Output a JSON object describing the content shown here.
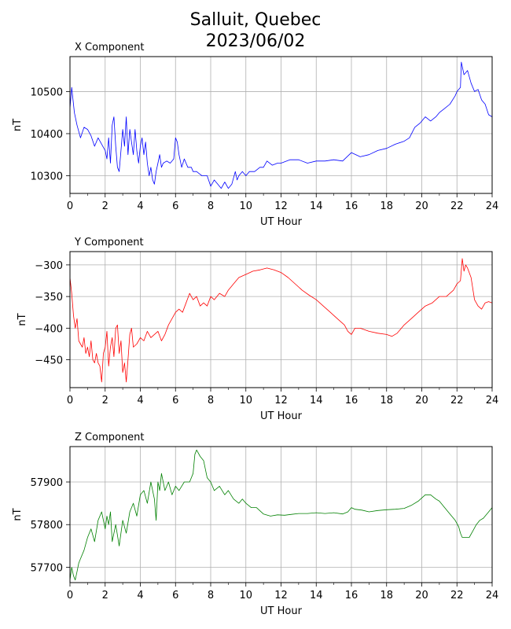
{
  "figure": {
    "title_line1": "Salluit, Quebec",
    "title_line2": "2023/06/02"
  },
  "colors": {
    "x": "#0000ff",
    "y": "#ff0000",
    "z": "#008000",
    "grid": "#b0b0b0"
  },
  "chart_data": [
    {
      "type": "line",
      "title": "X Component",
      "xlabel": "UT Hour",
      "ylabel": "nT",
      "xlim": [
        0,
        24
      ],
      "ylim": [
        10258,
        10583
      ],
      "xticks": [
        "0",
        "2",
        "4",
        "6",
        "8",
        "10",
        "12",
        "14",
        "16",
        "18",
        "20",
        "22",
        "24"
      ],
      "yticks": [
        10300,
        10400,
        10500
      ],
      "grid": true,
      "series": [
        {
          "color": "#0000ff",
          "x": [
            0,
            0.1,
            0.25,
            0.4,
            0.6,
            0.8,
            1.0,
            1.2,
            1.4,
            1.6,
            1.8,
            2.0,
            2.1,
            2.2,
            2.3,
            2.4,
            2.5,
            2.6,
            2.7,
            2.8,
            2.9,
            3.0,
            3.1,
            3.2,
            3.3,
            3.4,
            3.5,
            3.6,
            3.7,
            3.8,
            3.9,
            4.0,
            4.1,
            4.2,
            4.3,
            4.4,
            4.5,
            4.6,
            4.7,
            4.8,
            4.9,
            5.0,
            5.1,
            5.2,
            5.3,
            5.5,
            5.7,
            5.9,
            6.0,
            6.1,
            6.2,
            6.35,
            6.5,
            6.7,
            6.9,
            7.0,
            7.2,
            7.5,
            7.8,
            8.0,
            8.2,
            8.4,
            8.6,
            8.8,
            9.0,
            9.2,
            9.4,
            9.5,
            9.6,
            9.8,
            10.0,
            10.2,
            10.5,
            10.8,
            11.0,
            11.2,
            11.5,
            11.8,
            12.0,
            12.5,
            13.0,
            13.5,
            14.0,
            14.5,
            15.0,
            15.5,
            16.0,
            16.5,
            17.0,
            17.5,
            18.0,
            18.5,
            19.0,
            19.3,
            19.6,
            19.9,
            20.2,
            20.5,
            20.8,
            21.0,
            21.3,
            21.6,
            21.9,
            22.0,
            22.2,
            22.25,
            22.4,
            22.6,
            22.8,
            23.0,
            23.2,
            23.4,
            23.6,
            23.8,
            24.0
          ],
          "y": [
            10460,
            10510,
            10450,
            10420,
            10390,
            10415,
            10410,
            10395,
            10370,
            10390,
            10375,
            10360,
            10340,
            10390,
            10330,
            10420,
            10440,
            10370,
            10320,
            10310,
            10360,
            10410,
            10370,
            10440,
            10350,
            10410,
            10380,
            10350,
            10410,
            10360,
            10330,
            10370,
            10390,
            10350,
            10380,
            10330,
            10300,
            10320,
            10290,
            10280,
            10310,
            10330,
            10350,
            10320,
            10330,
            10335,
            10330,
            10340,
            10390,
            10380,
            10350,
            10320,
            10340,
            10320,
            10320,
            10310,
            10310,
            10300,
            10300,
            10275,
            10290,
            10280,
            10270,
            10285,
            10270,
            10280,
            10310,
            10290,
            10300,
            10310,
            10300,
            10310,
            10310,
            10320,
            10320,
            10335,
            10325,
            10330,
            10330,
            10338,
            10338,
            10330,
            10335,
            10335,
            10338,
            10335,
            10355,
            10345,
            10350,
            10360,
            10365,
            10375,
            10382,
            10390,
            10415,
            10425,
            10440,
            10430,
            10440,
            10450,
            10460,
            10470,
            10490,
            10500,
            10510,
            10570,
            10540,
            10550,
            10520,
            10500,
            10505,
            10480,
            10470,
            10445,
            10440
          ]
        }
      ]
    },
    {
      "type": "line",
      "title": "Y Component",
      "xlabel": "UT Hour",
      "ylabel": "nT",
      "xlim": [
        0,
        24
      ],
      "ylim": [
        -494,
        -279
      ],
      "xticks": [
        "0",
        "2",
        "4",
        "6",
        "8",
        "10",
        "12",
        "14",
        "16",
        "18",
        "20",
        "22",
        "24"
      ],
      "yticks": [
        -300,
        -350,
        -400,
        -450
      ],
      "grid": true,
      "series": [
        {
          "color": "#ff0000",
          "x": [
            0,
            0.1,
            0.2,
            0.3,
            0.4,
            0.5,
            0.6,
            0.7,
            0.8,
            0.9,
            1.0,
            1.1,
            1.2,
            1.3,
            1.4,
            1.5,
            1.6,
            1.7,
            1.8,
            1.9,
            2.0,
            2.1,
            2.2,
            2.3,
            2.4,
            2.5,
            2.6,
            2.7,
            2.8,
            2.9,
            3.0,
            3.1,
            3.2,
            3.3,
            3.4,
            3.5,
            3.6,
            3.8,
            4.0,
            4.2,
            4.4,
            4.6,
            4.8,
            5.0,
            5.2,
            5.4,
            5.6,
            5.8,
            6.0,
            6.2,
            6.4,
            6.6,
            6.8,
            7.0,
            7.2,
            7.4,
            7.6,
            7.8,
            8.0,
            8.2,
            8.5,
            8.8,
            9.0,
            9.3,
            9.6,
            10.0,
            10.4,
            10.8,
            11.2,
            11.6,
            12.0,
            12.4,
            12.8,
            13.2,
            13.6,
            14.0,
            14.4,
            14.8,
            15.2,
            15.6,
            15.8,
            16.0,
            16.2,
            16.5,
            17.0,
            17.5,
            18.0,
            18.3,
            18.6,
            19.0,
            19.4,
            19.8,
            20.2,
            20.6,
            21.0,
            21.4,
            21.8,
            22.0,
            22.2,
            22.3,
            22.4,
            22.5,
            22.6,
            22.8,
            23.0,
            23.2,
            23.4,
            23.6,
            23.8,
            24.0
          ],
          "y": [
            -320,
            -345,
            -380,
            -400,
            -385,
            -420,
            -425,
            -430,
            -415,
            -440,
            -430,
            -445,
            -420,
            -450,
            -455,
            -440,
            -455,
            -460,
            -485,
            -440,
            -430,
            -405,
            -460,
            -430,
            -415,
            -445,
            -400,
            -395,
            -440,
            -420,
            -470,
            -455,
            -485,
            -450,
            -410,
            -400,
            -430,
            -425,
            -415,
            -420,
            -405,
            -415,
            -410,
            -405,
            -420,
            -410,
            -395,
            -385,
            -375,
            -370,
            -375,
            -360,
            -345,
            -355,
            -350,
            -365,
            -360,
            -365,
            -350,
            -355,
            -345,
            -350,
            -340,
            -330,
            -320,
            -315,
            -310,
            -308,
            -305,
            -308,
            -312,
            -320,
            -330,
            -340,
            -348,
            -355,
            -365,
            -375,
            -385,
            -395,
            -405,
            -410,
            -400,
            -400,
            -405,
            -408,
            -410,
            -413,
            -408,
            -395,
            -385,
            -375,
            -365,
            -360,
            -350,
            -350,
            -340,
            -330,
            -325,
            -290,
            -310,
            -300,
            -305,
            -320,
            -355,
            -365,
            -370,
            -360,
            -358,
            -360
          ]
        }
      ]
    },
    {
      "type": "line",
      "title": "Z Component",
      "xlabel": "UT Hour",
      "ylabel": "nT",
      "xlim": [
        0,
        24
      ],
      "ylim": [
        57664,
        57983
      ],
      "xticks": [
        "0",
        "2",
        "4",
        "6",
        "8",
        "10",
        "12",
        "14",
        "16",
        "18",
        "20",
        "22",
        "24"
      ],
      "yticks": [
        57700,
        57800,
        57900
      ],
      "grid": true,
      "series": [
        {
          "color": "#008000",
          "x": [
            0,
            0.1,
            0.2,
            0.3,
            0.4,
            0.5,
            0.6,
            0.8,
            1.0,
            1.2,
            1.4,
            1.6,
            1.8,
            2.0,
            2.1,
            2.2,
            2.3,
            2.4,
            2.6,
            2.8,
            3.0,
            3.2,
            3.4,
            3.6,
            3.8,
            4.0,
            4.2,
            4.4,
            4.6,
            4.8,
            4.9,
            5.0,
            5.1,
            5.2,
            5.4,
            5.6,
            5.8,
            6.0,
            6.2,
            6.5,
            6.8,
            7.0,
            7.1,
            7.2,
            7.4,
            7.6,
            7.8,
            8.0,
            8.2,
            8.5,
            8.8,
            9.0,
            9.3,
            9.6,
            9.8,
            10.0,
            10.3,
            10.6,
            11.0,
            11.4,
            11.8,
            12.2,
            12.6,
            13.0,
            13.5,
            14.0,
            14.5,
            15.0,
            15.5,
            15.8,
            16.0,
            16.2,
            16.6,
            17.0,
            17.5,
            18.0,
            18.5,
            19.0,
            19.4,
            19.8,
            20.2,
            20.5,
            20.8,
            21.0,
            21.3,
            21.6,
            21.9,
            22.1,
            22.2,
            22.3,
            22.5,
            22.7,
            22.9,
            23.1,
            23.3,
            23.5,
            23.7,
            24.0
          ],
          "y": [
            57670,
            57700,
            57680,
            57670,
            57690,
            57710,
            57720,
            57740,
            57770,
            57790,
            57760,
            57810,
            57830,
            57790,
            57820,
            57800,
            57830,
            57760,
            57800,
            57750,
            57810,
            57780,
            57830,
            57850,
            57820,
            57870,
            57880,
            57850,
            57900,
            57860,
            57810,
            57900,
            57880,
            57920,
            57880,
            57900,
            57870,
            57890,
            57880,
            57900,
            57900,
            57920,
            57965,
            57975,
            57960,
            57950,
            57910,
            57900,
            57880,
            57890,
            57870,
            57880,
            57860,
            57850,
            57860,
            57850,
            57840,
            57840,
            57825,
            57820,
            57823,
            57822,
            57824,
            57826,
            57826,
            57828,
            57826,
            57828,
            57825,
            57830,
            57840,
            57836,
            57834,
            57830,
            57833,
            57835,
            57836,
            57838,
            57845,
            57855,
            57870,
            57870,
            57860,
            57855,
            57840,
            57825,
            57810,
            57795,
            57780,
            57770,
            57770,
            57770,
            57785,
            57800,
            57810,
            57815,
            57825,
            57840
          ]
        }
      ]
    }
  ]
}
